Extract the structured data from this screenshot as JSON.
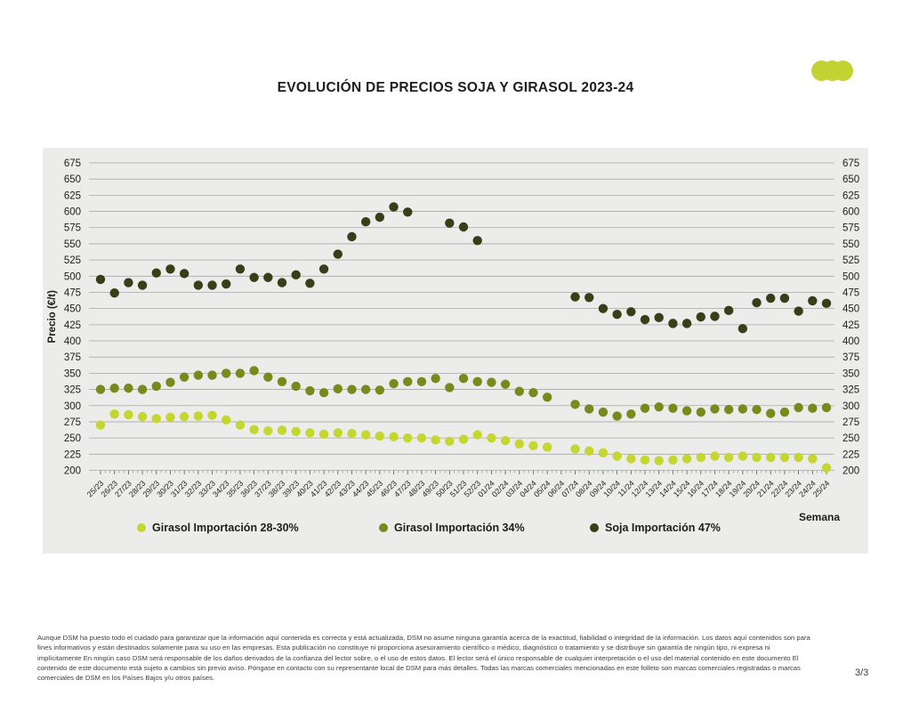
{
  "page": {
    "logo_color": "#c3d233",
    "page_number": "3/3"
  },
  "chart_data": {
    "type": "scatter",
    "title": "EVOLUCIÓN DE PRECIOS SOJA Y GIRASOL 2023-24",
    "xlabel": "Semana",
    "ylabel": "Precio (€/t)",
    "ylim": [
      200,
      675
    ],
    "ytick_step": 25,
    "grid": true,
    "legend_position": "bottom",
    "panel_background": "#ececeb",
    "gridline_color": "#a8a8a6",
    "categories": [
      "25/23",
      "26/23",
      "27/23",
      "28/23",
      "29/23",
      "30/23",
      "31/23",
      "32/23",
      "33/23",
      "34/23",
      "35/23",
      "36/23",
      "37/23",
      "38/23",
      "39/23",
      "40/23",
      "41/23",
      "42/23",
      "43/23",
      "44/23",
      "45/23",
      "46/23",
      "47/23",
      "48/23",
      "49/23",
      "50/23",
      "51/23",
      "52/23",
      "01/24",
      "02/24",
      "03/24",
      "04/24",
      "05/24",
      "06/24",
      "07/24",
      "08/24",
      "09/24",
      "10/24",
      "11/24",
      "12/24",
      "13/24",
      "14/24",
      "15/24",
      "16/24",
      "17/24",
      "18/24",
      "19/24",
      "20/24",
      "21/24",
      "22/24",
      "23/24",
      "24/24",
      "25/24"
    ],
    "series": [
      {
        "name": "Girasol Importación 28-30%",
        "color": "#c4d62f",
        "values": [
          270,
          287,
          286,
          283,
          280,
          282,
          283,
          284,
          285,
          278,
          270,
          263,
          261,
          262,
          260,
          258,
          256,
          258,
          257,
          255,
          253,
          252,
          250,
          250,
          247,
          245,
          248,
          255,
          250,
          246,
          241,
          238,
          236,
          null,
          233,
          230,
          227,
          222,
          218,
          216,
          215,
          216,
          218,
          220,
          222,
          220,
          222,
          220,
          220,
          220,
          220,
          218,
          204
        ]
      },
      {
        "name": "Girasol Importación 34%",
        "color": "#778a1c",
        "values": [
          325,
          327,
          327,
          325,
          330,
          336,
          344,
          347,
          347,
          350,
          350,
          354,
          344,
          337,
          330,
          323,
          320,
          326,
          325,
          325,
          324,
          334,
          337,
          337,
          342,
          328,
          342,
          337,
          336,
          333,
          322,
          320,
          313,
          null,
          302,
          295,
          290,
          284,
          287,
          296,
          298,
          296,
          292,
          290,
          295,
          294,
          295,
          294,
          288,
          290,
          297,
          296,
          297
        ]
      },
      {
        "name": "Soja Importación 47%",
        "color": "#383e18",
        "values": [
          495,
          474,
          490,
          486,
          505,
          511,
          504,
          486,
          486,
          488,
          511,
          498,
          498,
          490,
          502,
          489,
          511,
          534,
          561,
          584,
          591,
          607,
          599,
          null,
          null,
          582,
          576,
          555,
          null,
          null,
          null,
          null,
          null,
          null,
          468,
          467,
          450,
          441,
          445,
          433,
          436,
          427,
          427,
          437,
          438,
          447,
          419,
          459,
          466,
          466,
          446,
          462,
          458
        ]
      }
    ]
  },
  "footer": {
    "lines": [
      "Aunque DSM ha puesto todo el cuidado para garantizar que la información aquí contenida es correcta y está actualizada, DSM no asume ninguna garantía acerca de la exactitud, fiabilidad o integridad de la información. Los datos aquí contenidos son para",
      "fines informativos y están destinados solamente para su uso en las empresas. Esta publicación no constituye ni proporciona asesoramiento científico o médico, diagnóstico o tratamiento y se distribuye sin garantía de ningún tipo, ni expresa ni",
      "implícitamente En ningún caso DSM será responsable de los daños derivados de la confianza del lector sobre, o el uso de estos datos. El lector será el único responsable de cualquier interpretación o el uso del material contenido en este documento El",
      "contenido de este documento está sujeto a cambios sin previo aviso. Póngase en contacto con su representante local de DSM para más detalles. Todas las marcas comerciales mencionadas en este folleto son marcas comerciales registradas o marcas",
      "comerciales de DSM en los Países Bajos y/u otros países."
    ]
  }
}
